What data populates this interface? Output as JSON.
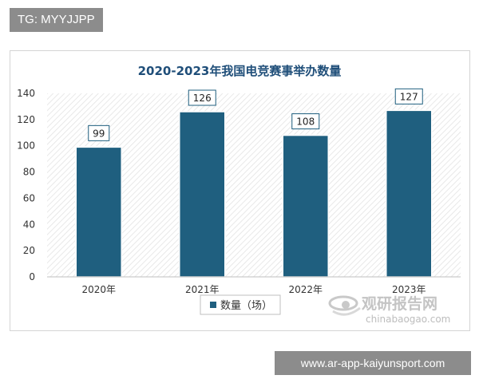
{
  "watermark_top": "TG: MYYJJPP",
  "watermark_bottom": "www.ar-app-kaiyunsport.com",
  "source_logo": {
    "name": "观研报告网",
    "url_text": "chinabaogao.com",
    "icon": "chinabaogao-logo-icon"
  },
  "colors": {
    "bar": "#1f5f7f",
    "title": "#1f4e79",
    "label_border": "#1f5f7f"
  },
  "chart_data": {
    "type": "bar",
    "title": "2020-2023年我国电竞赛事举办数量",
    "categories": [
      "2020年",
      "2021年",
      "2022年",
      "2023年"
    ],
    "series": [
      {
        "name": "数量（场）",
        "values": [
          99,
          126,
          108,
          127
        ]
      }
    ],
    "yticks": [
      0,
      20,
      40,
      60,
      80,
      100,
      120,
      140
    ],
    "ylim": [
      0,
      140
    ],
    "xlabel": "",
    "ylabel": "",
    "grid": false,
    "legend": "bottom"
  }
}
